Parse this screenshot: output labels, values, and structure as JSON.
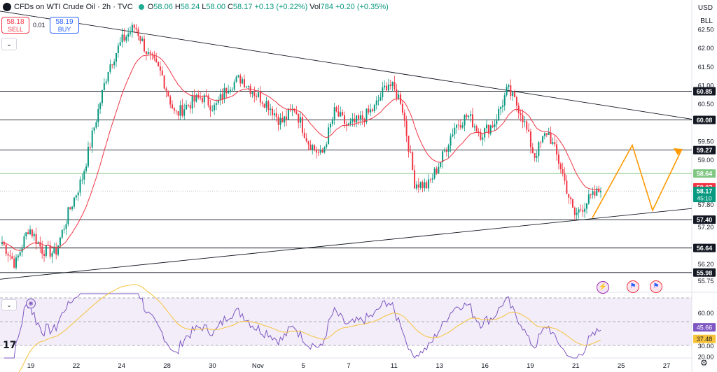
{
  "header": {
    "title": "CFDs on WTI Crude Oil · 2h · TVC",
    "open_label": "O",
    "open": "58.06",
    "high_label": "H",
    "high": "58.24",
    "low_label": "L",
    "low": "58.00",
    "close_label": "C",
    "close": "58.17",
    "change": "+0.13 (+0.22%)",
    "vol_label": "Vol",
    "vol": "784",
    "vol_change": "+0.20 (+0.35%)"
  },
  "trade": {
    "sell_price": "58.18",
    "sell_label": "SELL",
    "spread": "0.01",
    "buy_price": "58.19",
    "buy_label": "BUY"
  },
  "currency": "USD",
  "unit": "BLL",
  "colors": {
    "up": "#089981",
    "down": "#f23645",
    "ema": "#f23645",
    "rsi": "#7e57c2",
    "rsi_ma": "#f7c33c",
    "projection": "#ff9800",
    "hline": "#131722",
    "green_line": "#81c784"
  },
  "icons": [
    "collapse-chevron-icon",
    "rsi-badge-icon",
    "lightning-event-icon",
    "us-flag-event-icon",
    "settings-gear-icon",
    "tradingview-logo-icon"
  ],
  "chart_data": {
    "type": "candlestick",
    "price_axis": {
      "ticks": [
        "62.50",
        "62.00",
        "61.50",
        "61.00",
        "60.50",
        "59.50",
        "59.00",
        "57.80",
        "57.20",
        "56.20",
        "55.75"
      ],
      "ylim": [
        55.45,
        63.3
      ]
    },
    "horizontal_levels": [
      "60.85",
      "60.08",
      "59.27",
      "57.40",
      "56.64",
      "55.98"
    ],
    "green_level": "58.64",
    "ema_label": "58.27",
    "last_price": "58.17",
    "countdown": "45:10",
    "x_ticks": [
      "19",
      "22",
      "24",
      "28",
      "30",
      "Nov",
      "5",
      "7",
      "11",
      "13",
      "16",
      "19",
      "21",
      "25",
      "27"
    ],
    "trendline_upper": {
      "from": [
        "19",
        63.0
      ],
      "to": [
        "27",
        60.1
      ]
    },
    "trendline_lower": {
      "from": [
        "19",
        55.8
      ],
      "to": [
        "27",
        57.7
      ]
    },
    "projection": [
      57.45,
      59.4,
      57.65,
      59.3
    ],
    "anchors": [
      56.8,
      56.2,
      57.2,
      56.6,
      56.5,
      57.6,
      58.5,
      60.0,
      61.5,
      62.2,
      62.6,
      61.8,
      61.3,
      60.2,
      60.5,
      60.7,
      60.4,
      61.0,
      61.2,
      60.8,
      60.5,
      60.0,
      60.4,
      59.5,
      59.1,
      60.3,
      59.9,
      60.1,
      60.4,
      61.1,
      60.6,
      58.4,
      58.3,
      59.0,
      59.9,
      60.2,
      59.7,
      60.0,
      60.9,
      60.3,
      59.1,
      59.8,
      58.8,
      57.5,
      57.9,
      58.2
    ],
    "rsi": {
      "ticks": [
        "60.00",
        "30.00",
        "20.00"
      ],
      "value_label": "45.66",
      "ma_label": "37.48",
      "ylim": [
        19,
        78
      ],
      "upper_band": 70,
      "lower_band": 30,
      "mid": 50
    }
  }
}
